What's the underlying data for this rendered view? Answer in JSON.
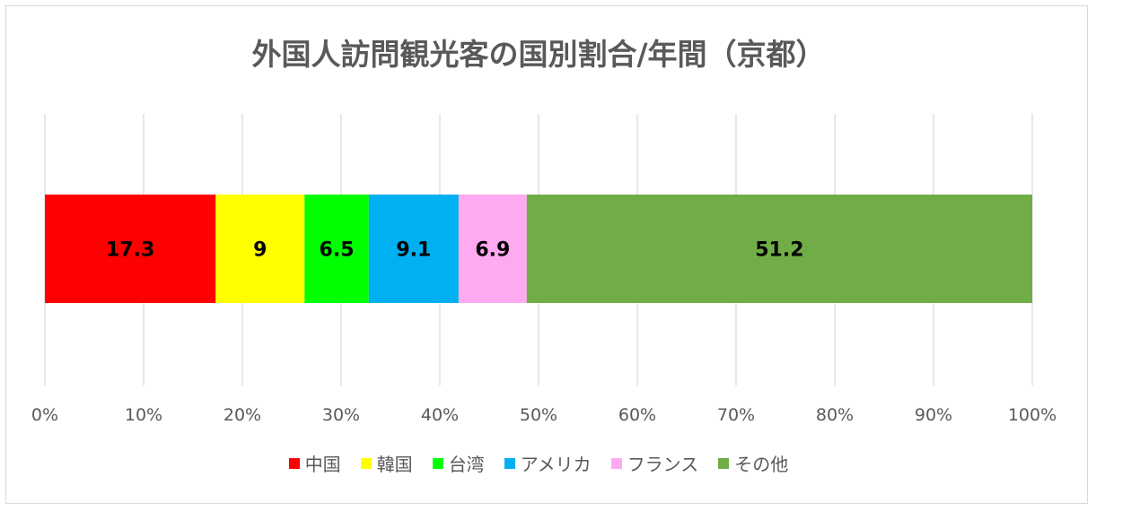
{
  "chart_data": {
    "type": "bar",
    "orientation": "horizontal-stacked-100",
    "title": "外国人訪問観光客の国別割合/年間（京都）",
    "xlim": [
      0,
      100
    ],
    "x_ticks": [
      "0%",
      "10%",
      "20%",
      "30%",
      "40%",
      "50%",
      "60%",
      "70%",
      "80%",
      "90%",
      "100%"
    ],
    "grid": true,
    "legend_position": "bottom",
    "series": [
      {
        "name": "中国",
        "value": 17.3,
        "label": "17.3",
        "color": "#ff0000"
      },
      {
        "name": "韓国",
        "value": 9,
        "label": "9",
        "color": "#ffff00"
      },
      {
        "name": "台湾",
        "value": 6.5,
        "label": "6.5",
        "color": "#00ff00"
      },
      {
        "name": "アメリカ",
        "value": 9.1,
        "label": "9.1",
        "color": "#00b0f0"
      },
      {
        "name": "フランス",
        "value": 6.9,
        "label": "6.9",
        "color": "#ffaaf0"
      },
      {
        "name": "その他",
        "value": 51.2,
        "label": "51.2",
        "color": "#70ad47"
      }
    ]
  }
}
